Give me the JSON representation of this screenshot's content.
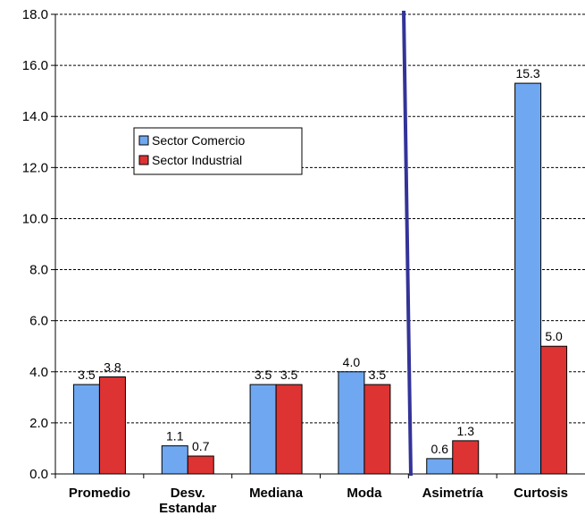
{
  "chart_data": {
    "type": "bar",
    "categories": [
      "Promedio",
      "Desv. Estandar",
      "Mediana",
      "Moda",
      "Asimetría",
      "Curtosis"
    ],
    "series": [
      {
        "name": "Sector Comercio",
        "values": [
          3.5,
          1.1,
          3.5,
          4.0,
          0.6,
          15.3
        ],
        "color": "#6fa8f0"
      },
      {
        "name": "Sector Industrial",
        "values": [
          3.8,
          0.7,
          3.5,
          3.5,
          1.3,
          5.0
        ],
        "color": "#dd3333"
      }
    ],
    "data_labels": [
      [
        "3.5",
        "1.1",
        "3.5",
        "4.0",
        "0.6",
        "15.3"
      ],
      [
        "3.8",
        "0.7",
        "3.5",
        "3.5",
        "1.3",
        "5.0"
      ]
    ],
    "ylim": [
      0,
      18
    ],
    "yticks": [
      0,
      2,
      4,
      6,
      8,
      10,
      12,
      14,
      16,
      18
    ],
    "ytick_labels": [
      "0.0",
      "2.0",
      "4.0",
      "6.0",
      "8.0",
      "10.0",
      "12.0",
      "14.0",
      "16.0",
      "18.0"
    ],
    "grid": true,
    "legend_position": "upper-left",
    "divider_line_color": "#333399",
    "title": "",
    "xlabel": "",
    "ylabel": ""
  }
}
